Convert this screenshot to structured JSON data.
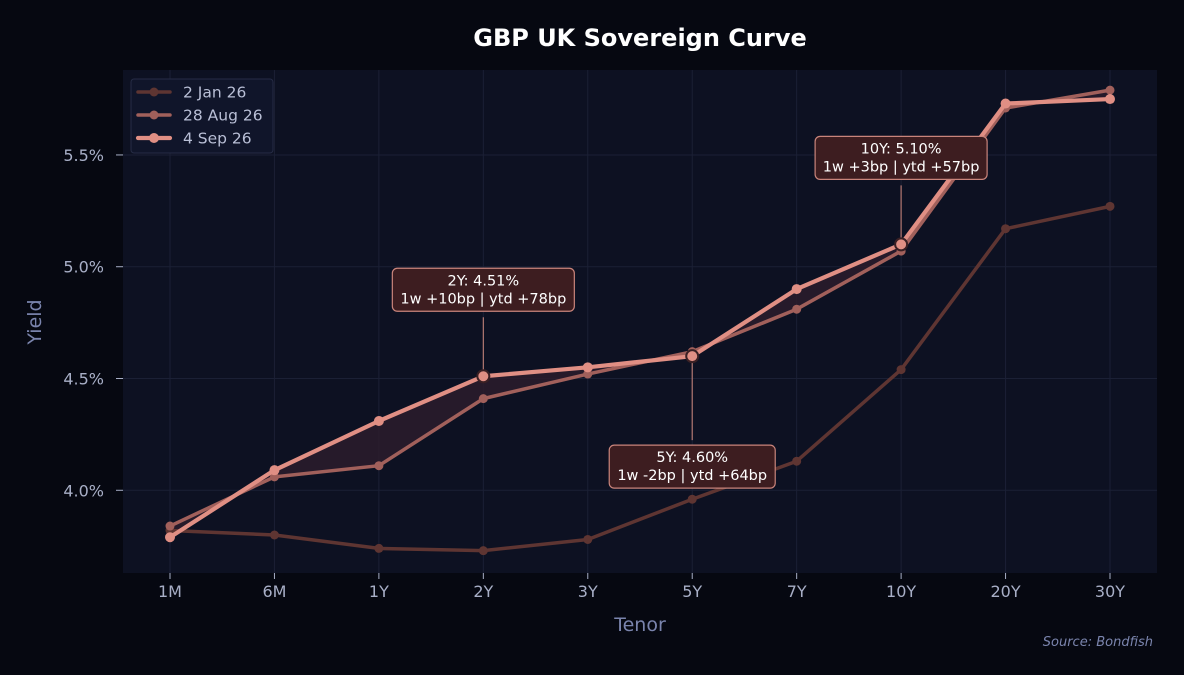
{
  "chart_data": {
    "type": "line",
    "title": "GBP UK Sovereign Curve",
    "xlabel": "Tenor",
    "ylabel": "Yield",
    "categories": [
      "1M",
      "6M",
      "1Y",
      "2Y",
      "3Y",
      "5Y",
      "7Y",
      "10Y",
      "20Y",
      "30Y"
    ],
    "ylim": [
      3.63,
      5.88
    ],
    "yticks": [
      4.0,
      4.5,
      5.0,
      5.5
    ],
    "ytick_labels": [
      "4.0%",
      "4.5%",
      "5.0%",
      "5.5%"
    ],
    "grid": true,
    "legend_position": "top-left",
    "series": [
      {
        "name": "2 Jan 26",
        "color": "#5e3532",
        "values": [
          3.82,
          3.8,
          3.74,
          3.73,
          3.78,
          3.96,
          4.13,
          4.54,
          5.17,
          5.27
        ]
      },
      {
        "name": "28 Aug 26",
        "color": "#a1605b",
        "values": [
          3.84,
          4.06,
          4.11,
          4.41,
          4.52,
          4.62,
          4.81,
          5.07,
          5.71,
          5.79
        ]
      },
      {
        "name": "4 Sep 26",
        "color": "#e08f84",
        "values": [
          3.79,
          4.09,
          4.31,
          4.51,
          4.55,
          4.6,
          4.9,
          5.1,
          5.73,
          5.75
        ]
      }
    ],
    "annotations": [
      {
        "category": "2Y",
        "value": 4.51,
        "line1": "2Y: 4.51%",
        "line2": "1w +10bp | ytd +78bp",
        "placement": "above"
      },
      {
        "category": "5Y",
        "value": 4.6,
        "line1": "5Y: 4.60%",
        "line2": "1w -2bp | ytd +64bp",
        "placement": "below"
      },
      {
        "category": "10Y",
        "value": 5.1,
        "line1": "10Y: 5.10%",
        "line2": "1w +3bp | ytd +57bp",
        "placement": "above"
      }
    ],
    "source": "Source: Bondfish"
  },
  "colors": {
    "background": "#060811",
    "plot_background": "#0d1122",
    "grid": "#1b2035",
    "fill_between": "#2c1c2c",
    "annotation_bg": "#3d1d20",
    "annotation_border": "#c9847b"
  }
}
